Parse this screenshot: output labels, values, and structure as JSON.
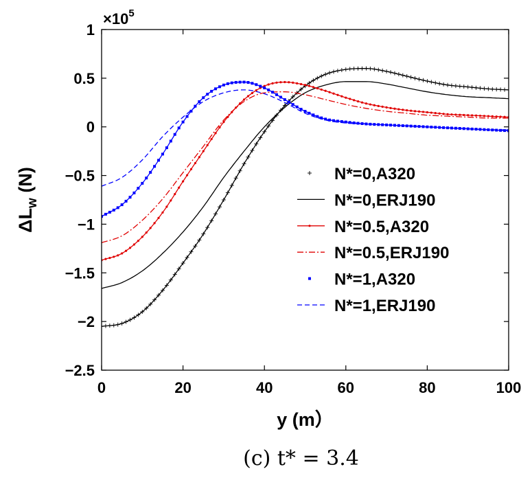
{
  "chart_data": {
    "type": "line",
    "title": "",
    "caption": "(c) t* = 3.4",
    "xlabel": "y (m）",
    "ylabel_main": "ΔL",
    "ylabel_sub": "w",
    "ylabel_unit": " (N)",
    "exponent_prefix": "×10",
    "exponent_power": "5",
    "xlim": [
      0,
      100
    ],
    "ylim": [
      -2.5,
      1
    ],
    "xticks": [
      0,
      20,
      40,
      60,
      80,
      100
    ],
    "xtick_labels": [
      "0",
      "20",
      "40",
      "60",
      "80",
      "100"
    ],
    "yticks": [
      -2.5,
      -2,
      -1.5,
      -1,
      -0.5,
      0,
      0.5,
      1
    ],
    "ytick_labels": [
      "−2.5",
      "−2",
      "−1.5",
      "−1",
      "−0.5",
      "0",
      "0.5",
      "1"
    ],
    "legend_position": "center-right",
    "series": [
      {
        "name": "N*=0,A320",
        "color": "#000000",
        "style": "plus-marker",
        "x": [
          0,
          5,
          10,
          15,
          20,
          25,
          30,
          35,
          40,
          45,
          50,
          55,
          60,
          65,
          70,
          75,
          80,
          85,
          90,
          95,
          100
        ],
        "y": [
          -2.05,
          -2.02,
          -1.9,
          -1.68,
          -1.4,
          -1.1,
          -0.75,
          -0.38,
          -0.05,
          0.22,
          0.42,
          0.54,
          0.59,
          0.6,
          0.57,
          0.52,
          0.47,
          0.43,
          0.41,
          0.39,
          0.38
        ]
      },
      {
        "name": "N*=0,ERJ190",
        "color": "#000000",
        "style": "solid",
        "x": [
          0,
          5,
          10,
          15,
          20,
          25,
          30,
          35,
          40,
          45,
          50,
          55,
          60,
          65,
          70,
          75,
          80,
          85,
          90,
          95,
          100
        ],
        "y": [
          -1.66,
          -1.6,
          -1.48,
          -1.3,
          -1.08,
          -0.82,
          -0.52,
          -0.25,
          0.0,
          0.2,
          0.35,
          0.43,
          0.465,
          0.465,
          0.44,
          0.4,
          0.36,
          0.33,
          0.31,
          0.3,
          0.29
        ]
      },
      {
        "name": "N*=0.5,A320",
        "color": "#e00000",
        "style": "dot-marker",
        "x": [
          0,
          5,
          10,
          15,
          20,
          25,
          30,
          35,
          40,
          45,
          50,
          55,
          60,
          65,
          70,
          75,
          80,
          85,
          90,
          95,
          100
        ],
        "y": [
          -1.37,
          -1.3,
          -1.13,
          -0.88,
          -0.56,
          -0.25,
          0.05,
          0.28,
          0.42,
          0.46,
          0.43,
          0.37,
          0.3,
          0.24,
          0.2,
          0.17,
          0.15,
          0.13,
          0.12,
          0.11,
          0.1
        ]
      },
      {
        "name": "N*=0.5,ERJ190",
        "color": "#e00000",
        "style": "dash-dot",
        "x": [
          0,
          5,
          10,
          15,
          20,
          25,
          30,
          35,
          40,
          45,
          50,
          55,
          60,
          65,
          70,
          75,
          80,
          85,
          90,
          95,
          100
        ],
        "y": [
          -1.19,
          -1.12,
          -0.96,
          -0.74,
          -0.47,
          -0.2,
          0.07,
          0.26,
          0.35,
          0.36,
          0.33,
          0.28,
          0.23,
          0.19,
          0.16,
          0.14,
          0.12,
          0.11,
          0.1,
          0.09,
          0.09
        ]
      },
      {
        "name": "N*=1,A320",
        "color": "#0000ff",
        "style": "square-marker",
        "x": [
          0,
          5,
          10,
          15,
          20,
          25,
          30,
          35,
          40,
          45,
          50,
          55,
          60,
          65,
          70,
          75,
          80,
          85,
          90,
          95,
          100
        ],
        "y": [
          -0.92,
          -0.8,
          -0.58,
          -0.28,
          0.05,
          0.3,
          0.43,
          0.46,
          0.4,
          0.28,
          0.16,
          0.08,
          0.05,
          0.03,
          0.02,
          0.01,
          0.0,
          -0.01,
          -0.02,
          -0.03,
          -0.04
        ]
      },
      {
        "name": "N*=1,ERJ190",
        "color": "#0000ff",
        "style": "dashed",
        "x": [
          0,
          5,
          10,
          15,
          20,
          25,
          30,
          35,
          40,
          45,
          50,
          55,
          60,
          65,
          70,
          75,
          80,
          85,
          90,
          95,
          100
        ],
        "y": [
          -0.61,
          -0.52,
          -0.34,
          -0.1,
          0.1,
          0.26,
          0.35,
          0.38,
          0.34,
          0.25,
          0.14,
          0.07,
          0.04,
          0.03,
          0.02,
          0.01,
          0.0,
          -0.01,
          -0.02,
          -0.03,
          -0.03
        ]
      }
    ]
  }
}
